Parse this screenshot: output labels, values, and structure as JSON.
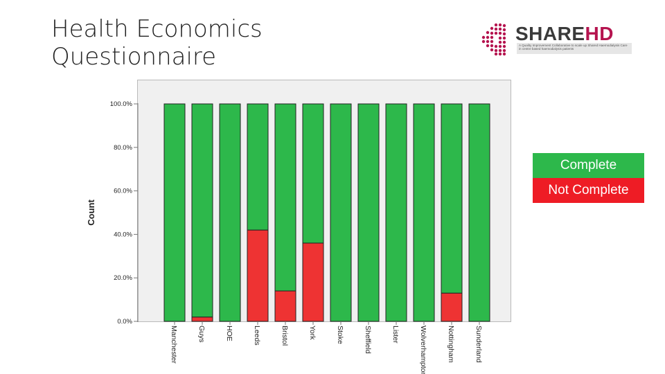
{
  "slide": {
    "title_line1": "Health Economics",
    "title_line2": "Questionnaire"
  },
  "logo": {
    "word_share": "SHARE",
    "word_hd": "HD",
    "tagline": "A Quality Improvement Collaborative to scale up Shared Haemodialysis Care in centre based haemodialysis patients"
  },
  "legend": {
    "items": [
      {
        "label": "Complete",
        "color": "#2db84b"
      },
      {
        "label": "Not Complete",
        "color": "#ee1c25"
      }
    ]
  },
  "colors": {
    "complete": "#2db84b",
    "not_complete": "#ee3333",
    "frame_bg": "#f0f0f0"
  },
  "chart_data": {
    "type": "bar",
    "stacked": true,
    "ylabel": "Count",
    "ylim": [
      0,
      100
    ],
    "yticks": [
      "0.0%",
      "20.0%",
      "40.0%",
      "60.0%",
      "80.0%",
      "100.0%"
    ],
    "ytick_values": [
      0,
      20,
      40,
      60,
      80,
      100
    ],
    "categories": [
      "Manchester",
      "Guys",
      "HOE",
      "Leeds",
      "Bristol",
      "York",
      "Stoke",
      "Sheffield",
      "Lister",
      "Wolverhampton",
      "Nottingham",
      "Sunderland"
    ],
    "series": [
      {
        "name": "Not Complete",
        "values": [
          0,
          2,
          0,
          42,
          14,
          36,
          0,
          0,
          0,
          0,
          13,
          0
        ]
      },
      {
        "name": "Complete",
        "values": [
          100,
          98,
          100,
          58,
          86,
          64,
          100,
          100,
          100,
          100,
          87,
          100
        ]
      }
    ],
    "grid": false
  }
}
